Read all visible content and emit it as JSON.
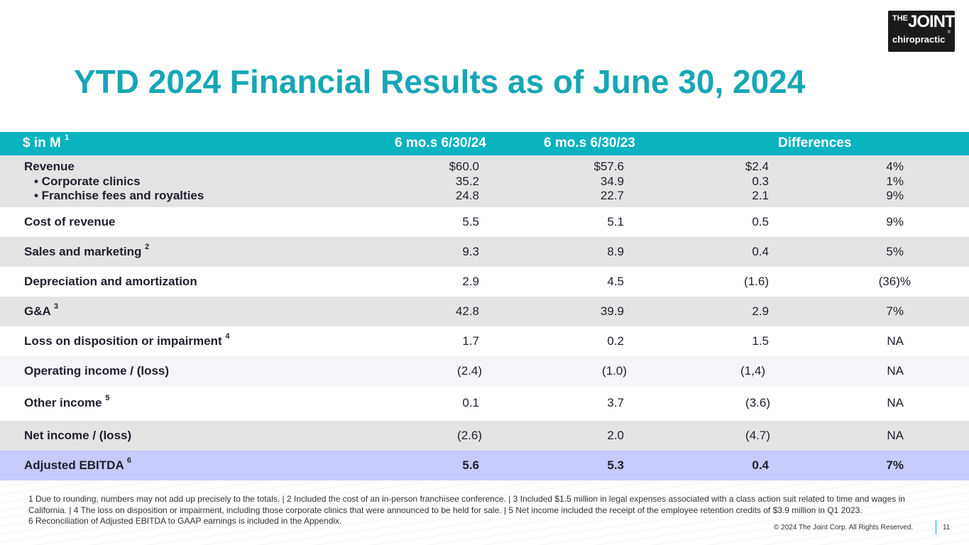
{
  "logo": {
    "line1": "THE",
    "line1b": "JOINT",
    "line2": "chiropractic",
    "reg": "®"
  },
  "title": "YTD 2024 Financial Results as of June 30, 2024",
  "table": {
    "header": {
      "label": "$ in M",
      "label_sup": "1",
      "col_a": "6 mo.s 6/30/24",
      "col_b": "6 mo.s 6/30/23",
      "col_diff": "Differences"
    },
    "revenue": {
      "label": "Revenue",
      "sub1": "• Corporate clinics",
      "sub2": "• Franchise fees and royalties",
      "a": [
        "$60.0",
        "35.2",
        "24.8"
      ],
      "b": [
        "$57.6",
        "34.9",
        "22.7"
      ],
      "c": [
        "$2.4",
        "0.3",
        "2.1"
      ],
      "d": [
        "4%",
        "1%",
        "9%"
      ]
    },
    "rows": [
      {
        "label": "Cost of revenue",
        "sup": "",
        "a": "5.5",
        "b": "5.1",
        "c": "0.5",
        "d": "9%"
      },
      {
        "label": "Sales and marketing",
        "sup": "2",
        "a": "9.3",
        "b": "8.9",
        "c": "0.4",
        "d": "5%"
      },
      {
        "label": "Depreciation and amortization",
        "sup": "",
        "a": "2.9",
        "b": "4.5",
        "c": "(1.6)",
        "d": "(36)%"
      },
      {
        "label": "G&A",
        "sup": "3",
        "a": "42.8",
        "b": "39.9",
        "c": "2.9",
        "d": "7%"
      },
      {
        "label": "Loss on disposition or impairment",
        "sup": "4",
        "a": "1.7",
        "b": "0.2",
        "c": "1.5",
        "d": "NA"
      },
      {
        "label": "Operating income / (loss)",
        "sup": "",
        "a": "(2.4)",
        "b": "(1.0)",
        "c": "(1,4)",
        "d": "NA"
      },
      {
        "label": "Other income",
        "sup": "5",
        "a": "0.1",
        "b": "3.7",
        "c": "(3.6)",
        "d": "NA"
      },
      {
        "label": "Net income / (loss)",
        "sup": "",
        "a": "(2.6)",
        "b": "2.0",
        "c": "(4.7)",
        "d": "NA"
      },
      {
        "label": "Adjusted EBITDA",
        "sup": "6",
        "a": "5.6",
        "b": "5.3",
        "c": "0.4",
        "d": "7%"
      }
    ]
  },
  "footnotes": {
    "line1": "1 Due to rounding, numbers may not add up precisely to the totals. | 2 Included the cost of an in-person franchisee conference. | 3 Included $1.5 million in legal expenses associated with a class action suit related to time and wages in California. | 4 The loss on disposition or impairment, including those corporate clinics that were announced to be held for sale. | 5 Net income included the receipt of the employee retention credits of $3.9 million in Q1 2023.",
    "line2": "6 Reconciliation of Adjusted EBITDA to GAAP earnings is included in the Appendix."
  },
  "copyright": "© 2024 The Joint Corp. All Rights Reserved.",
  "page_number": "11"
}
